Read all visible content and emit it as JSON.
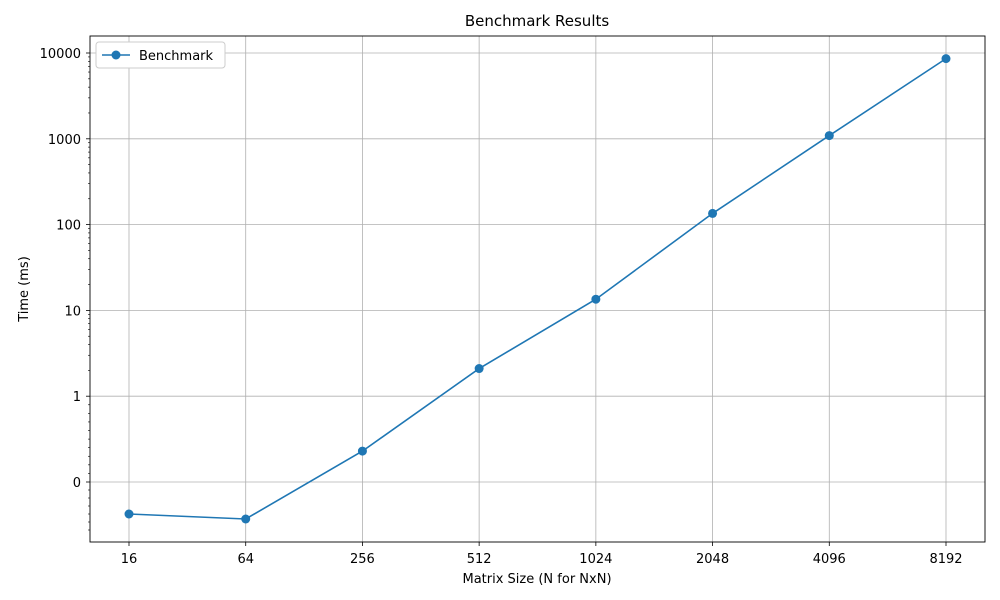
{
  "chart_data": {
    "type": "line",
    "title": "Benchmark Results",
    "xlabel": "Matrix Size (N for NxN)",
    "ylabel": "Time (ms)",
    "categories": [
      "16",
      "64",
      "256",
      "512",
      "1024",
      "2048",
      "4096",
      "8192"
    ],
    "y_scale": "symlog",
    "y_ticks": [
      0,
      1,
      10,
      100,
      1000,
      10000
    ],
    "y_tick_labels": [
      "0",
      "1",
      "10",
      "100",
      "1000",
      "10000"
    ],
    "grid": true,
    "legend_position": "top-left",
    "series": [
      {
        "name": "Benchmark",
        "color": "#1f77b4",
        "marker": "circle",
        "values": [
          0.0012,
          0.0005,
          0.36,
          2.1,
          13.5,
          135,
          1090,
          8600
        ]
      }
    ]
  }
}
